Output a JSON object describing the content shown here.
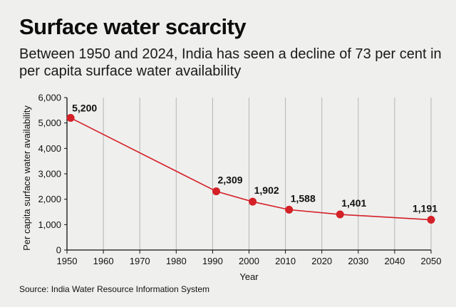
{
  "header": {
    "title": "Surface water scarcity",
    "subtitle": "Between 1950 and 2024, India has seen a decline of 73 per cent in per capita surface water availability"
  },
  "footer": {
    "source": "Source: India Water Resource Information System"
  },
  "colors": {
    "line": "#d42027",
    "grid": "#b5b5b5",
    "background": "#efefee"
  },
  "chart_data": {
    "type": "line",
    "xlabel": "Year",
    "ylabel": "Per capita surface water availability",
    "xlim": [
      1950,
      2050
    ],
    "ylim": [
      0,
      6000
    ],
    "x_ticks": [
      1950,
      1960,
      1970,
      1980,
      1990,
      2000,
      2010,
      2020,
      2030,
      2040,
      2050
    ],
    "x_tick_labels": [
      "1950",
      "1960",
      "1970",
      "1980",
      "1990",
      "2000",
      "2010",
      "2020",
      "2030",
      "2040",
      "2050"
    ],
    "y_ticks": [
      0,
      1000,
      2000,
      3000,
      4000,
      5000,
      6000
    ],
    "y_tick_labels": [
      "0",
      "1,000",
      "2,000",
      "3,000",
      "4,000",
      "5,000",
      "6,000"
    ],
    "grid": "vertical",
    "series": [
      {
        "x": [
          1951,
          1991,
          2001,
          2011,
          2025,
          2050
        ],
        "values": [
          5200,
          2309,
          1902,
          1588,
          1401,
          1191
        ],
        "labels": [
          "5,200",
          "2,309",
          "1,902",
          "1,588",
          "1,401",
          "1,191"
        ]
      }
    ]
  }
}
